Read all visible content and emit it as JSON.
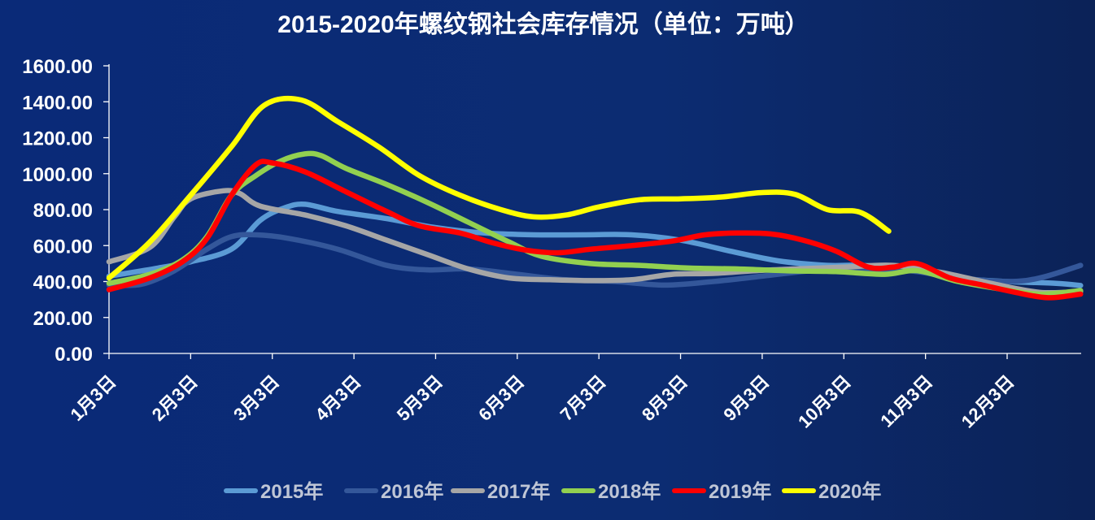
{
  "chart_data": {
    "type": "line",
    "title": "2015-2020年螺纹钢社会库存情况（单位：万吨）",
    "xlabel": "",
    "ylabel": "",
    "ylim": [
      0,
      1600
    ],
    "y_ticks": [
      "0.00",
      "200.00",
      "400.00",
      "600.00",
      "800.00",
      "1000.00",
      "1200.00",
      "1400.00",
      "1600.00"
    ],
    "categories": [
      "1月3日",
      "2月3日",
      "3月3日",
      "4月3日",
      "5月3日",
      "6月3日",
      "7月3日",
      "8月3日",
      "9月3日",
      "10月3日",
      "11月3日",
      "12月3日"
    ],
    "x_range": [
      0,
      11.9
    ],
    "grid": false,
    "legend_position": "bottom",
    "series": [
      {
        "name": "2015年",
        "color": "#5b9bd5",
        "points": [
          [
            0,
            430
          ],
          [
            0.6,
            475
          ],
          [
            1.0,
            510
          ],
          [
            1.5,
            580
          ],
          [
            1.85,
            740
          ],
          [
            2.15,
            810
          ],
          [
            2.4,
            830
          ],
          [
            2.8,
            790
          ],
          [
            3.4,
            750
          ],
          [
            4.0,
            700
          ],
          [
            4.6,
            670
          ],
          [
            5.2,
            660
          ],
          [
            5.8,
            660
          ],
          [
            6.4,
            660
          ],
          [
            7.0,
            630
          ],
          [
            7.6,
            570
          ],
          [
            8.2,
            515
          ],
          [
            8.8,
            490
          ],
          [
            9.2,
            490
          ],
          [
            9.8,
            470
          ],
          [
            10.4,
            420
          ],
          [
            11.0,
            400
          ],
          [
            11.6,
            390
          ],
          [
            11.9,
            378
          ]
        ]
      },
      {
        "name": "2016年",
        "color": "#34579a",
        "points": [
          [
            0,
            380
          ],
          [
            0.4,
            385
          ],
          [
            0.8,
            460
          ],
          [
            1.2,
            580
          ],
          [
            1.5,
            650
          ],
          [
            1.8,
            660
          ],
          [
            2.2,
            640
          ],
          [
            2.8,
            580
          ],
          [
            3.4,
            490
          ],
          [
            3.9,
            465
          ],
          [
            4.4,
            470
          ],
          [
            5.0,
            440
          ],
          [
            5.6,
            410
          ],
          [
            6.2,
            400
          ],
          [
            6.8,
            380
          ],
          [
            7.4,
            400
          ],
          [
            8.0,
            430
          ],
          [
            8.6,
            460
          ],
          [
            9.2,
            470
          ],
          [
            9.8,
            460
          ],
          [
            10.4,
            420
          ],
          [
            11.0,
            400
          ],
          [
            11.4,
            420
          ],
          [
            11.9,
            490
          ]
        ]
      },
      {
        "name": "2017年",
        "color": "#a6a6a6",
        "points": [
          [
            0,
            510
          ],
          [
            0.5,
            590
          ],
          [
            0.8,
            760
          ],
          [
            1.0,
            860
          ],
          [
            1.4,
            905
          ],
          [
            1.6,
            890
          ],
          [
            1.85,
            820
          ],
          [
            2.4,
            770
          ],
          [
            2.9,
            710
          ],
          [
            3.4,
            630
          ],
          [
            3.9,
            550
          ],
          [
            4.4,
            470
          ],
          [
            4.9,
            420
          ],
          [
            5.4,
            410
          ],
          [
            5.9,
            405
          ],
          [
            6.4,
            410
          ],
          [
            6.9,
            440
          ],
          [
            7.4,
            445
          ],
          [
            7.9,
            460
          ],
          [
            8.4,
            470
          ],
          [
            9.0,
            480
          ],
          [
            9.6,
            490
          ],
          [
            10.2,
            450
          ],
          [
            10.8,
            390
          ],
          [
            11.4,
            340
          ],
          [
            11.9,
            345
          ]
        ]
      },
      {
        "name": "2018年",
        "color": "#92d050",
        "points": [
          [
            0,
            390
          ],
          [
            0.5,
            440
          ],
          [
            0.9,
            520
          ],
          [
            1.2,
            650
          ],
          [
            1.5,
            880
          ],
          [
            1.8,
            990
          ],
          [
            2.1,
            1070
          ],
          [
            2.4,
            1110
          ],
          [
            2.6,
            1100
          ],
          [
            2.9,
            1030
          ],
          [
            3.4,
            940
          ],
          [
            3.9,
            840
          ],
          [
            4.4,
            730
          ],
          [
            4.9,
            620
          ],
          [
            5.3,
            540
          ],
          [
            5.9,
            500
          ],
          [
            6.5,
            490
          ],
          [
            7.1,
            475
          ],
          [
            7.7,
            470
          ],
          [
            8.3,
            460
          ],
          [
            8.9,
            455
          ],
          [
            9.5,
            440
          ],
          [
            9.9,
            460
          ],
          [
            10.4,
            400
          ],
          [
            10.9,
            360
          ],
          [
            11.4,
            330
          ],
          [
            11.9,
            350
          ]
        ]
      },
      {
        "name": "2019年",
        "color": "#ff0000",
        "points": [
          [
            0,
            355
          ],
          [
            0.5,
            420
          ],
          [
            0.9,
            510
          ],
          [
            1.2,
            640
          ],
          [
            1.5,
            880
          ],
          [
            1.8,
            1050
          ],
          [
            2.0,
            1060
          ],
          [
            2.4,
            1010
          ],
          [
            2.9,
            900
          ],
          [
            3.4,
            790
          ],
          [
            3.8,
            710
          ],
          [
            4.3,
            670
          ],
          [
            4.7,
            615
          ],
          [
            5.1,
            575
          ],
          [
            5.5,
            560
          ],
          [
            5.9,
            580
          ],
          [
            6.4,
            600
          ],
          [
            6.9,
            625
          ],
          [
            7.3,
            660
          ],
          [
            7.7,
            670
          ],
          [
            8.1,
            665
          ],
          [
            8.5,
            630
          ],
          [
            8.9,
            570
          ],
          [
            9.3,
            480
          ],
          [
            9.6,
            480
          ],
          [
            9.9,
            500
          ],
          [
            10.3,
            420
          ],
          [
            10.7,
            380
          ],
          [
            11.1,
            340
          ],
          [
            11.5,
            310
          ],
          [
            11.9,
            330
          ]
        ]
      },
      {
        "name": "2020年",
        "color": "#ffff00",
        "points": [
          [
            0,
            420
          ],
          [
            0.5,
            620
          ],
          [
            1.0,
            880
          ],
          [
            1.5,
            1150
          ],
          [
            1.9,
            1380
          ],
          [
            2.35,
            1410
          ],
          [
            2.8,
            1290
          ],
          [
            3.3,
            1150
          ],
          [
            3.8,
            990
          ],
          [
            4.3,
            880
          ],
          [
            4.8,
            800
          ],
          [
            5.2,
            760
          ],
          [
            5.6,
            770
          ],
          [
            6.0,
            815
          ],
          [
            6.5,
            855
          ],
          [
            7.0,
            860
          ],
          [
            7.5,
            870
          ],
          [
            8.0,
            895
          ],
          [
            8.4,
            885
          ],
          [
            8.8,
            800
          ],
          [
            9.2,
            785
          ],
          [
            9.55,
            680
          ]
        ]
      }
    ]
  }
}
